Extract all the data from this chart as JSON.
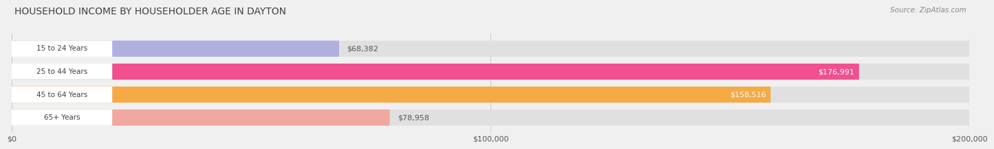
{
  "title": "HOUSEHOLD INCOME BY HOUSEHOLDER AGE IN DAYTON",
  "source": "Source: ZipAtlas.com",
  "categories": [
    "15 to 24 Years",
    "25 to 44 Years",
    "45 to 64 Years",
    "65+ Years"
  ],
  "values": [
    68382,
    176991,
    158516,
    78958
  ],
  "bar_colors": [
    "#b0b0e0",
    "#f05090",
    "#f5aa45",
    "#f0a8a0"
  ],
  "background_color": "#f0f0f0",
  "bar_bg_color": "#e0e0e0",
  "label_bg_color": "#ffffff",
  "xlim": [
    0,
    200000
  ],
  "xticks": [
    0,
    100000,
    200000
  ],
  "xtick_labels": [
    "$0",
    "$100,000",
    "$200,000"
  ],
  "label_threshold": 150000,
  "title_color": "#404040",
  "source_color": "#888888",
  "cat_label_color": "#404040",
  "value_label_inside_color": "#ffffff",
  "value_label_outside_color": "#555555",
  "grid_color": "#cccccc"
}
